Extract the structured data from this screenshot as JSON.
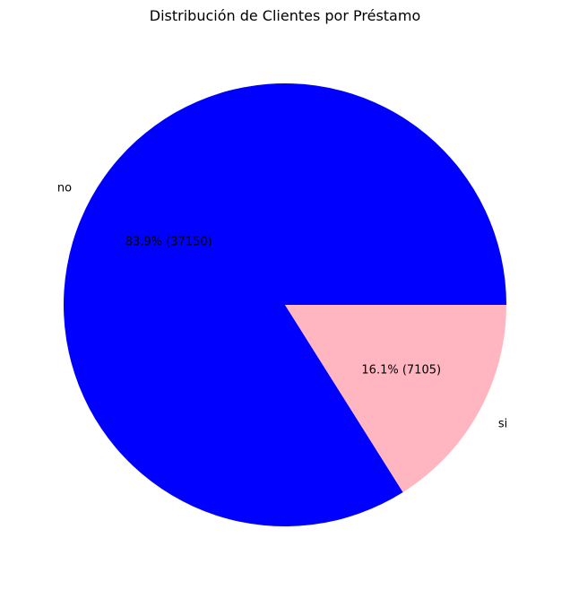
{
  "chart_data": {
    "type": "pie",
    "title": "Distribución de Clientes por Préstamo",
    "slices": [
      {
        "label": "no",
        "value": 37150,
        "pct_label": "83.9% (37150)",
        "color": "#0000ff"
      },
      {
        "label": "si",
        "value": 7105,
        "pct_label": "16.1% (7105)",
        "color": "#ffb6c1"
      }
    ],
    "start_angle_deg": 0,
    "direction": "counterclockwise"
  }
}
